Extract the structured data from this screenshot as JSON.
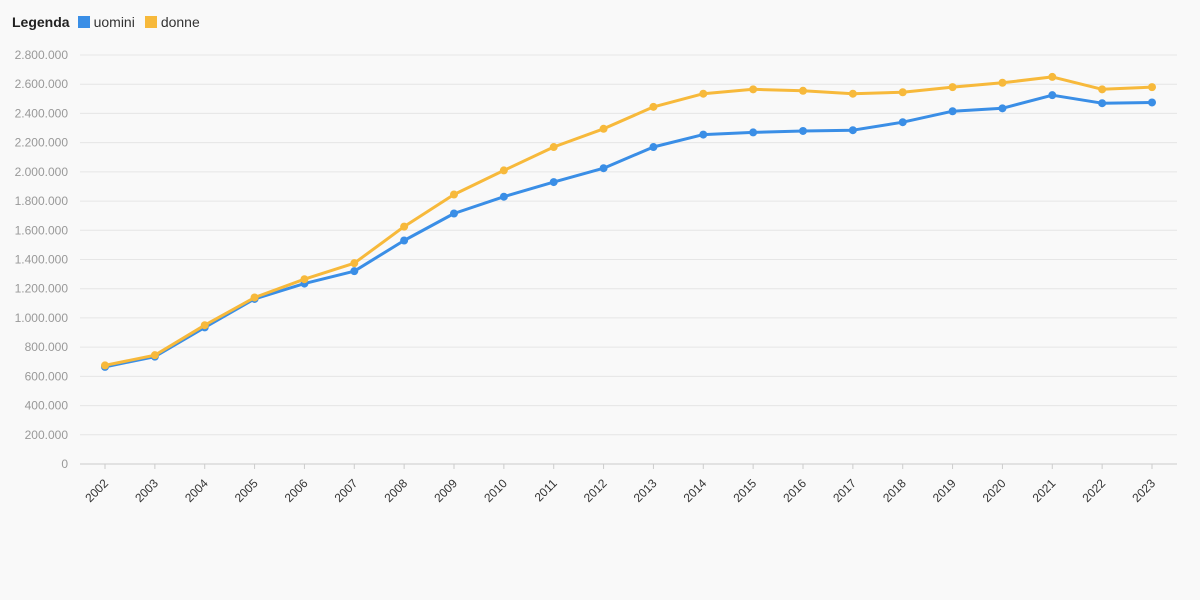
{
  "legend": {
    "title": "Legenda",
    "items": [
      {
        "label": "uomini",
        "color": "#3a8ee6"
      },
      {
        "label": "donne",
        "color": "#f7b93b"
      }
    ]
  },
  "chart_data": {
    "type": "line",
    "title": "",
    "xlabel": "",
    "ylabel": "",
    "x": [
      "2002",
      "2003",
      "2004",
      "2005",
      "2006",
      "2007",
      "2008",
      "2009",
      "2010",
      "2011",
      "2012",
      "2013",
      "2014",
      "2015",
      "2016",
      "2017",
      "2018",
      "2019",
      "2020",
      "2021",
      "2022",
      "2023"
    ],
    "series": [
      {
        "name": "uomini",
        "color": "#3a8ee6",
        "values": [
          665000,
          735000,
          935000,
          1130000,
          1235000,
          1320000,
          1530000,
          1715000,
          1830000,
          1930000,
          2025000,
          2170000,
          2255000,
          2270000,
          2280000,
          2285000,
          2340000,
          2415000,
          2435000,
          2525000,
          2470000,
          2475000
        ]
      },
      {
        "name": "donne",
        "color": "#f7b93b",
        "values": [
          675000,
          745000,
          950000,
          1140000,
          1265000,
          1375000,
          1625000,
          1845000,
          2010000,
          2170000,
          2295000,
          2445000,
          2535000,
          2565000,
          2555000,
          2535000,
          2545000,
          2580000,
          2610000,
          2650000,
          2565000,
          2580000
        ]
      }
    ],
    "ylim": [
      0,
      2800000
    ],
    "yticks": [
      0,
      200000,
      400000,
      600000,
      800000,
      1000000,
      1200000,
      1400000,
      1600000,
      1800000,
      2000000,
      2200000,
      2400000,
      2600000,
      2800000
    ],
    "ytick_labels": [
      "0",
      "200.000",
      "400.000",
      "600.000",
      "800.000",
      "1.000.000",
      "1.200.000",
      "1.400.000",
      "1.600.000",
      "1.800.000",
      "2.000.000",
      "2.200.000",
      "2.400.000",
      "2.600.000",
      "2.800.000"
    ],
    "grid": true,
    "legend_position": "top-left",
    "gridline_color": "#e6e6e6",
    "axis_color": "#cccccc"
  }
}
